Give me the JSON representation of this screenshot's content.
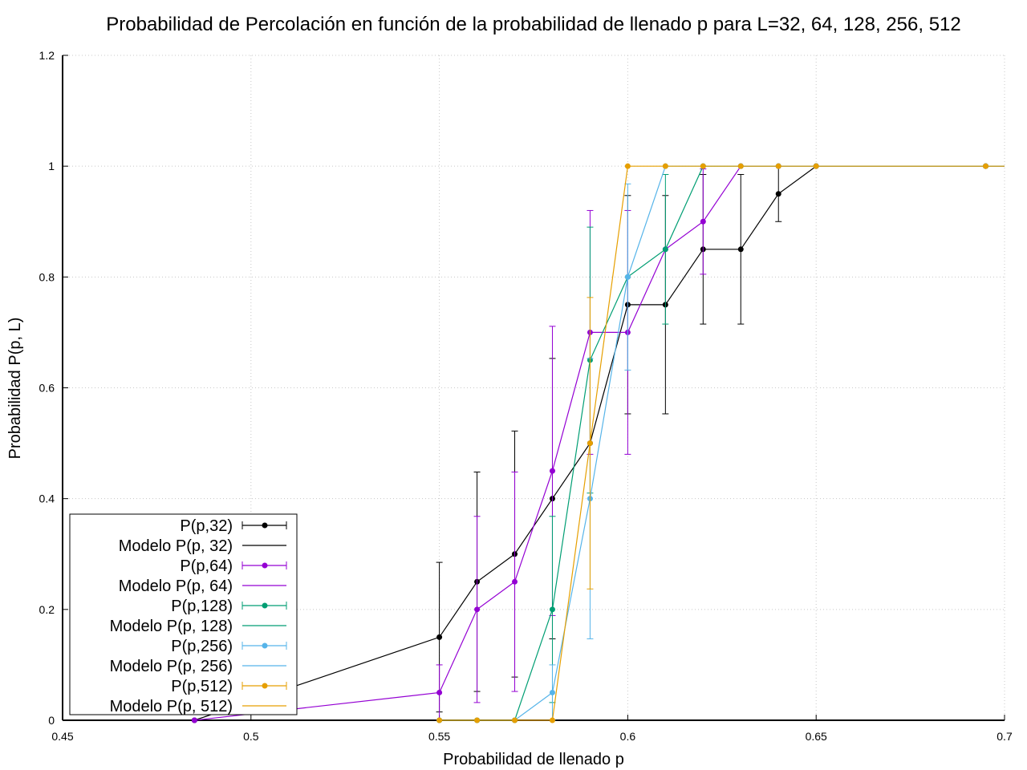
{
  "chart_data": {
    "type": "line",
    "title": "Probabilidad de Percolación en función de la probabilidad de llenado p para L=32, 64, 128, 256, 512",
    "xlabel": "Probabilidad de llenado p",
    "ylabel": "Probabilidad P(p, L)",
    "xlim": [
      0.45,
      0.7
    ],
    "ylim": [
      0,
      1.2
    ],
    "xticks": [
      "0.45",
      "0.5",
      "0.55",
      "0.6",
      "0.65",
      "0.7"
    ],
    "yticks": [
      "0",
      "0.2",
      "0.4",
      "0.6",
      "0.8",
      "1",
      "1.2"
    ],
    "grid": true,
    "legend_position": "bottom-left",
    "series": [
      {
        "name": "P(p,32)",
        "model_name": "Modelo P(p, 32)",
        "color": "#000000",
        "x": [
          0.485,
          0.55,
          0.56,
          0.57,
          0.58,
          0.59,
          0.6,
          0.61,
          0.62,
          0.63,
          0.64,
          0.65,
          0.695
        ],
        "y": [
          0,
          0.15,
          0.25,
          0.3,
          0.4,
          0.5,
          0.75,
          0.75,
          0.85,
          0.85,
          0.95,
          1.0,
          1.0
        ],
        "err": [
          0,
          0.135,
          0.198,
          0.222,
          0.253,
          0.0,
          0.197,
          0.197,
          0.135,
          0.135,
          0.05,
          0,
          0
        ]
      },
      {
        "name": "P(p,64)",
        "model_name": "Modelo P(p, 64)",
        "color": "#9400d3",
        "x": [
          0.485,
          0.55,
          0.56,
          0.57,
          0.58,
          0.59,
          0.6,
          0.61,
          0.62,
          0.63,
          0.64,
          0.65,
          0.695
        ],
        "y": [
          0,
          0.05,
          0.2,
          0.25,
          0.45,
          0.7,
          0.7,
          0.85,
          0.9,
          1.0,
          1.0,
          1.0,
          1.0
        ],
        "err": [
          0,
          0.05,
          0.168,
          0.198,
          0.261,
          0.22,
          0.22,
          0.0,
          0.095,
          0,
          0,
          0,
          0
        ]
      },
      {
        "name": "P(p,128)",
        "model_name": "Modelo P(p, 128)",
        "color": "#009e73",
        "x": [
          0.55,
          0.56,
          0.57,
          0.58,
          0.59,
          0.6,
          0.61,
          0.62,
          0.63,
          0.64,
          0.65,
          0.695
        ],
        "y": [
          0,
          0,
          0,
          0.2,
          0.65,
          0.8,
          0.85,
          1.0,
          1.0,
          1.0,
          1.0,
          1.0
        ],
        "err": [
          0,
          0,
          0,
          0.168,
          0.24,
          0.0,
          0.135,
          0,
          0,
          0,
          0,
          0
        ]
      },
      {
        "name": "P(p,256)",
        "model_name": "Modelo P(p, 256)",
        "color": "#56b4e9",
        "x": [
          0.55,
          0.56,
          0.57,
          0.58,
          0.59,
          0.6,
          0.61,
          0.62,
          0.63,
          0.64,
          0.65,
          0.695
        ],
        "y": [
          0,
          0,
          0,
          0.05,
          0.4,
          0.8,
          1.0,
          1.0,
          1.0,
          1.0,
          1.0,
          1.0
        ],
        "err": [
          0,
          0,
          0,
          0.05,
          0.253,
          0.168,
          0,
          0,
          0,
          0,
          0,
          0
        ]
      },
      {
        "name": "P(p,512)",
        "model_name": "Modelo P(p, 512)",
        "color": "#e69f00",
        "x": [
          0.55,
          0.56,
          0.57,
          0.58,
          0.59,
          0.6,
          0.61,
          0.62,
          0.63,
          0.64,
          0.65,
          0.695
        ],
        "y": [
          0,
          0,
          0,
          0,
          0.5,
          1.0,
          1.0,
          1.0,
          1.0,
          1.0,
          1.0,
          1.0
        ],
        "err": [
          0,
          0,
          0,
          0,
          0.263,
          0,
          0,
          0,
          0,
          0,
          0,
          0
        ]
      }
    ]
  }
}
